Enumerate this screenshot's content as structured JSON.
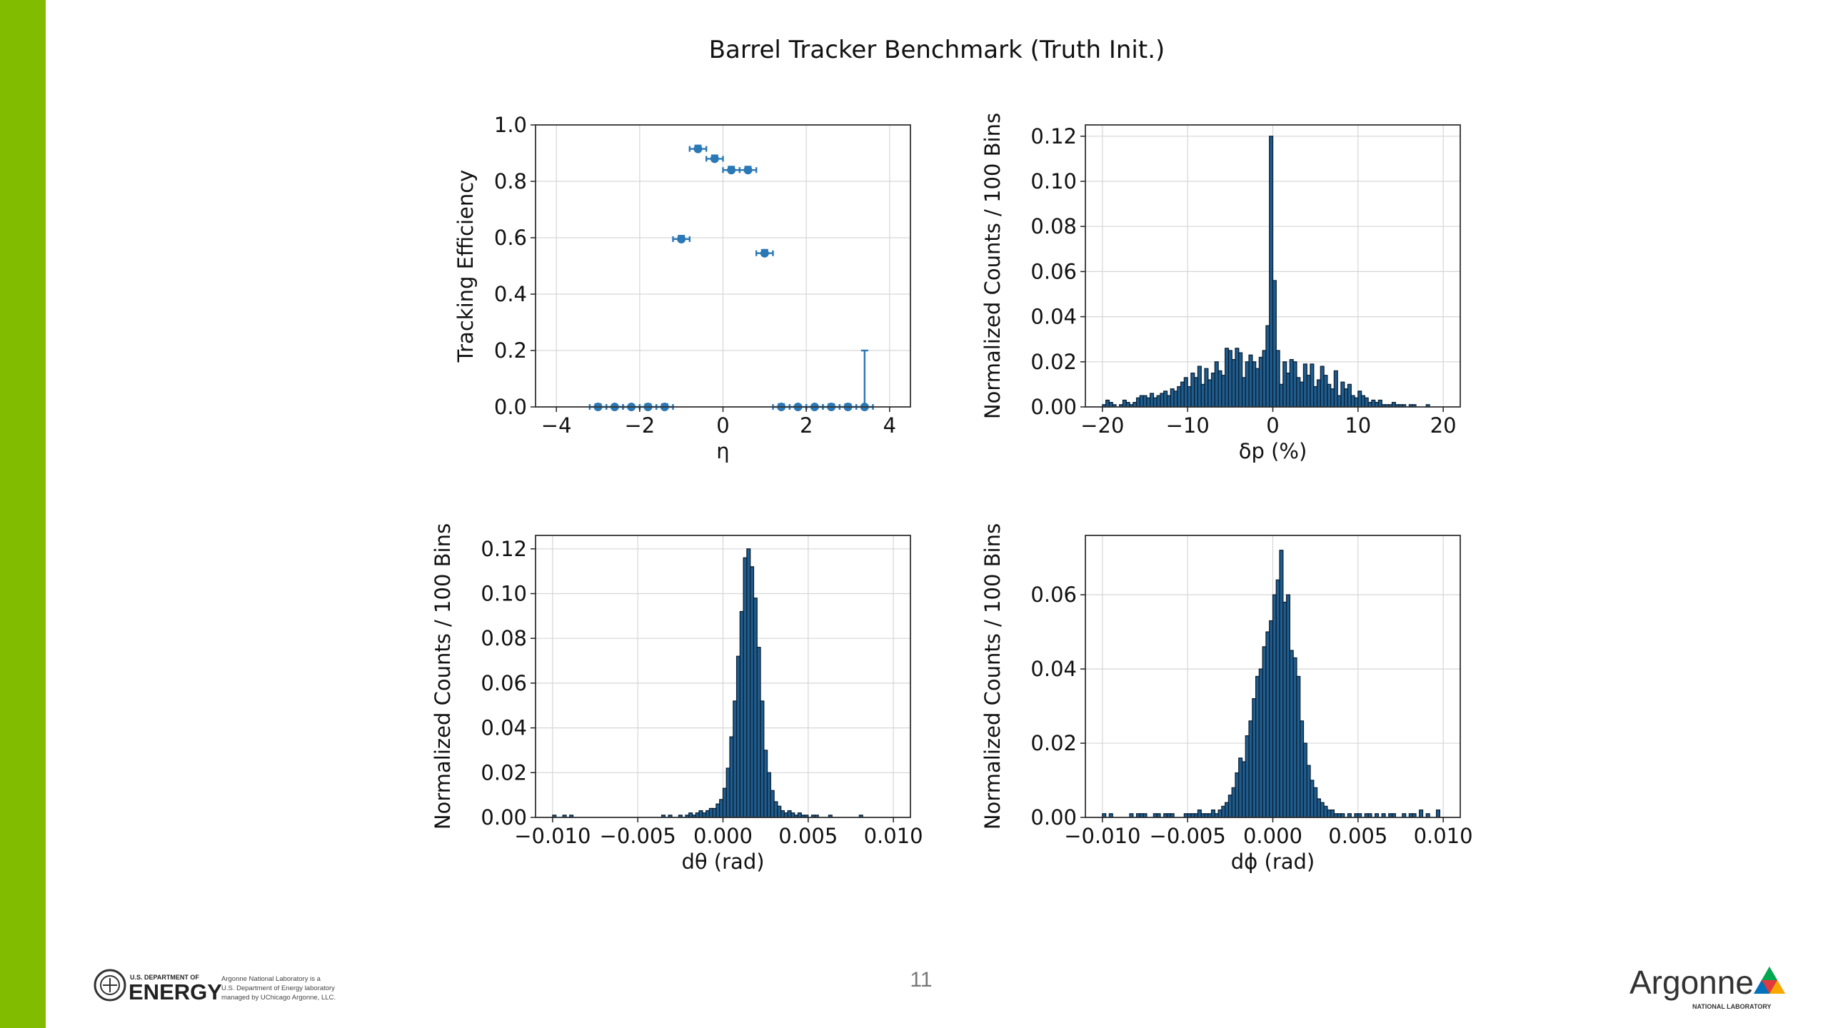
{
  "slide": {
    "title": "Barrel Tracker Benchmark (Truth Init.)",
    "page_number": "11",
    "accent_color": "#82bc00"
  },
  "footer": {
    "doe_logo": {
      "lines": [
        "U.S. DEPARTMENT OF",
        "ENERGY"
      ],
      "caption": [
        "Argonne National Laboratory is a",
        "U.S. Department of Energy laboratory",
        "managed by UChicago Argonne, LLC."
      ]
    },
    "argonne_logo": {
      "name": "Argonne",
      "subtitle": "NATIONAL LABORATORY"
    }
  },
  "chart_data": [
    {
      "id": "efficiency",
      "type": "scatter",
      "xlabel": "η",
      "ylabel": "Tracking Efficiency",
      "xlim": [
        -4.5,
        4.5
      ],
      "ylim": [
        0.0,
        1.0
      ],
      "xticks": [
        -4,
        -2,
        0,
        2,
        4
      ],
      "xtick_labels": [
        "−4",
        "−2",
        "0",
        "2",
        "4"
      ],
      "yticks": [
        0.0,
        0.2,
        0.4,
        0.6,
        0.8,
        1.0
      ],
      "ytick_labels": [
        "0.0",
        "0.2",
        "0.4",
        "0.6",
        "0.8",
        "1.0"
      ],
      "grid": true,
      "color": "#2a78b5",
      "points": [
        {
          "x": -3.0,
          "y": 0.0,
          "xerr": 0.2,
          "yerr": 0.01
        },
        {
          "x": -2.6,
          "y": 0.0,
          "xerr": 0.2,
          "yerr": 0.0
        },
        {
          "x": -2.2,
          "y": 0.0,
          "xerr": 0.2,
          "yerr": 0.0
        },
        {
          "x": -1.8,
          "y": 0.0,
          "xerr": 0.2,
          "yerr": 0.01
        },
        {
          "x": -1.4,
          "y": 0.0,
          "xerr": 0.2,
          "yerr": 0.01
        },
        {
          "x": -1.0,
          "y": 0.595,
          "xerr": 0.2,
          "yerr": 0.012
        },
        {
          "x": -0.6,
          "y": 0.915,
          "xerr": 0.2,
          "yerr": 0.012
        },
        {
          "x": -0.2,
          "y": 0.88,
          "xerr": 0.2,
          "yerr": 0.012
        },
        {
          "x": 0.2,
          "y": 0.84,
          "xerr": 0.2,
          "yerr": 0.012
        },
        {
          "x": 0.6,
          "y": 0.84,
          "xerr": 0.2,
          "yerr": 0.012
        },
        {
          "x": 1.0,
          "y": 0.545,
          "xerr": 0.2,
          "yerr": 0.012
        },
        {
          "x": 1.4,
          "y": 0.0,
          "xerr": 0.2,
          "yerr": 0.01
        },
        {
          "x": 1.8,
          "y": 0.0,
          "xerr": 0.2,
          "yerr": 0.0
        },
        {
          "x": 2.2,
          "y": 0.0,
          "xerr": 0.2,
          "yerr": 0.0
        },
        {
          "x": 2.6,
          "y": 0.0,
          "xerr": 0.2,
          "yerr": 0.01
        },
        {
          "x": 3.0,
          "y": 0.0,
          "xerr": 0.2,
          "yerr": 0.01
        },
        {
          "x": 3.4,
          "y": 0.0,
          "xerr": 0.2,
          "yerr": 0.2
        }
      ]
    },
    {
      "id": "dp",
      "type": "bar",
      "xlabel": "δp (%)",
      "ylabel": "Normalized Counts / 100 Bins",
      "xlim": [
        -22,
        22
      ],
      "ylim": [
        0.0,
        0.125
      ],
      "xticks": [
        -20,
        -10,
        0,
        10,
        20
      ],
      "xtick_labels": [
        "−20",
        "−10",
        "0",
        "10",
        "20"
      ],
      "yticks": [
        0.0,
        0.02,
        0.04,
        0.06,
        0.08,
        0.1,
        0.12
      ],
      "ytick_labels": [
        "0.00",
        "0.02",
        "0.04",
        "0.06",
        "0.08",
        "0.10",
        "0.12"
      ],
      "grid": true,
      "color": "#1f5d8f",
      "bin_range": [
        -20,
        20
      ],
      "values": [
        0.001,
        0.003,
        0.002,
        0.001,
        0.0,
        0.001,
        0.003,
        0.002,
        0.001,
        0.002,
        0.004,
        0.005,
        0.005,
        0.004,
        0.006,
        0.004,
        0.005,
        0.006,
        0.007,
        0.005,
        0.008,
        0.007,
        0.009,
        0.011,
        0.013,
        0.009,
        0.015,
        0.013,
        0.018,
        0.01,
        0.017,
        0.012,
        0.015,
        0.02,
        0.016,
        0.014,
        0.026,
        0.025,
        0.021,
        0.026,
        0.024,
        0.013,
        0.02,
        0.023,
        0.02,
        0.017,
        0.022,
        0.025,
        0.036,
        0.12,
        0.056,
        0.025,
        0.01,
        0.02,
        0.015,
        0.021,
        0.02,
        0.013,
        0.011,
        0.019,
        0.014,
        0.019,
        0.009,
        0.012,
        0.018,
        0.014,
        0.01,
        0.008,
        0.016,
        0.005,
        0.011,
        0.008,
        0.01,
        0.005,
        0.004,
        0.007,
        0.005,
        0.004,
        0.002,
        0.003,
        0.002,
        0.003,
        0.001,
        0.001,
        0.001,
        0.002,
        0.001,
        0.001,
        0.001,
        0.0,
        0.001,
        0.001,
        0.0,
        0.0,
        0.0,
        0.001,
        0.0,
        0.0,
        0.0,
        0.0
      ]
    },
    {
      "id": "dtheta",
      "type": "bar",
      "xlabel": "dθ (rad)",
      "ylabel": "Normalized Counts / 100 Bins",
      "xlim": [
        -0.011,
        0.011
      ],
      "ylim": [
        0.0,
        0.126
      ],
      "xticks": [
        -0.01,
        -0.005,
        0.0,
        0.005,
        0.01
      ],
      "xtick_labels": [
        "−0.010",
        "−0.005",
        "0.000",
        "0.005",
        "0.010"
      ],
      "yticks": [
        0.0,
        0.02,
        0.04,
        0.06,
        0.08,
        0.1,
        0.12
      ],
      "ytick_labels": [
        "0.00",
        "0.02",
        "0.04",
        "0.06",
        "0.08",
        "0.10",
        "0.12"
      ],
      "grid": true,
      "color": "#1f5d8f",
      "bin_range": [
        -0.01,
        0.01
      ],
      "values": [
        0.001,
        0.0,
        0.0,
        0.001,
        0.0,
        0.001,
        0.0,
        0.0,
        0.0,
        0.0,
        0.0,
        0.0,
        0.0,
        0.0,
        0.0,
        0.0,
        0.0,
        0.0,
        0.0,
        0.0,
        0.0,
        0.0,
        0.0,
        0.0,
        0.0,
        0.0,
        0.0,
        0.0,
        0.0,
        0.0,
        0.0,
        0.0,
        0.001,
        0.0,
        0.001,
        0.0,
        0.0,
        0.001,
        0.0,
        0.001,
        0.002,
        0.001,
        0.002,
        0.003,
        0.002,
        0.003,
        0.004,
        0.004,
        0.006,
        0.008,
        0.013,
        0.022,
        0.036,
        0.052,
        0.072,
        0.092,
        0.116,
        0.12,
        0.112,
        0.098,
        0.076,
        0.052,
        0.03,
        0.02,
        0.012,
        0.007,
        0.005,
        0.003,
        0.002,
        0.003,
        0.002,
        0.001,
        0.002,
        0.001,
        0.001,
        0.0,
        0.001,
        0.001,
        0.0,
        0.0,
        0.0,
        0.001,
        0.0,
        0.0,
        0.0,
        0.0,
        0.0,
        0.0,
        0.0,
        0.0,
        0.001,
        0.0,
        0.0,
        0.0,
        0.0,
        0.0,
        0.0,
        0.0,
        0.0,
        0.0
      ]
    },
    {
      "id": "dphi",
      "type": "bar",
      "xlabel": "dϕ (rad)",
      "ylabel": "Normalized Counts / 100 Bins",
      "xlim": [
        -0.011,
        0.011
      ],
      "ylim": [
        0.0,
        0.076
      ],
      "xticks": [
        -0.01,
        -0.005,
        0.0,
        0.005,
        0.01
      ],
      "xtick_labels": [
        "−0.010",
        "−0.005",
        "0.000",
        "0.005",
        "0.010"
      ],
      "yticks": [
        0.0,
        0.02,
        0.04,
        0.06
      ],
      "ytick_labels": [
        "0.00",
        "0.02",
        "0.04",
        "0.06"
      ],
      "grid": true,
      "color": "#1f5d8f",
      "bin_range": [
        -0.01,
        0.01
      ],
      "values": [
        0.001,
        0.0,
        0.001,
        0.0,
        0.0,
        0.0,
        0.0,
        0.0,
        0.001,
        0.0,
        0.001,
        0.001,
        0.001,
        0.0,
        0.0,
        0.001,
        0.001,
        0.0,
        0.001,
        0.001,
        0.001,
        0.0,
        0.0,
        0.0,
        0.001,
        0.001,
        0.001,
        0.001,
        0.002,
        0.001,
        0.001,
        0.001,
        0.002,
        0.001,
        0.002,
        0.003,
        0.004,
        0.006,
        0.008,
        0.012,
        0.016,
        0.015,
        0.022,
        0.026,
        0.032,
        0.038,
        0.04,
        0.046,
        0.05,
        0.053,
        0.06,
        0.064,
        0.072,
        0.058,
        0.06,
        0.045,
        0.043,
        0.038,
        0.026,
        0.02,
        0.014,
        0.01,
        0.008,
        0.005,
        0.004,
        0.003,
        0.002,
        0.002,
        0.001,
        0.001,
        0.001,
        0.0,
        0.001,
        0.0,
        0.001,
        0.001,
        0.0,
        0.001,
        0.001,
        0.0,
        0.001,
        0.0,
        0.001,
        0.0,
        0.001,
        0.001,
        0.0,
        0.0,
        0.001,
        0.0,
        0.001,
        0.001,
        0.0,
        0.002,
        0.0,
        0.001,
        0.0,
        0.0,
        0.002,
        0.0
      ]
    }
  ]
}
